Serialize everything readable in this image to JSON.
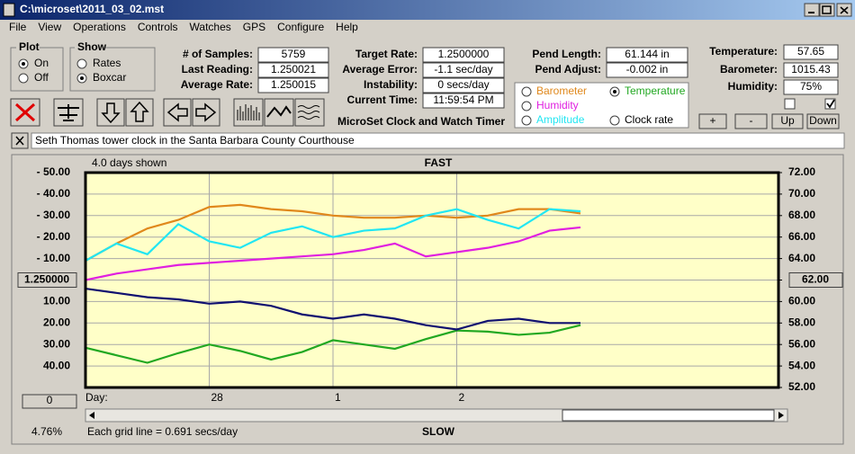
{
  "window": {
    "title": "C:\\microset\\2011_03_02.mst"
  },
  "menu": [
    "File",
    "View",
    "Operations",
    "Controls",
    "Watches",
    "GPS",
    "Configure",
    "Help"
  ],
  "plot_group": {
    "title": "Plot",
    "options": [
      "On",
      "Off"
    ]
  },
  "show_group": {
    "title": "Show",
    "options": [
      "Rates",
      "Boxcar"
    ]
  },
  "fields": [
    {
      "label": "# of Samples:",
      "value": "5759"
    },
    {
      "label": "Last Reading:",
      "value": "1.250021"
    },
    {
      "label": "Average Rate:",
      "value": "1.250015"
    },
    {
      "label": "Target Rate:",
      "value": "1.2500000"
    },
    {
      "label": "Average Error:",
      "value": "-1.1 sec/day"
    },
    {
      "label": "Instability:",
      "value": "0 secs/day"
    },
    {
      "label": "Current Time:",
      "value": "11:59:54 PM"
    },
    {
      "label": "Pend Length:",
      "value": "61.144 in"
    },
    {
      "label": "Pend Adjust:",
      "value": "-0.002 in"
    },
    {
      "label": "Temperature:",
      "value": "57.65"
    },
    {
      "label": "Barometer:",
      "value": "1015.43"
    },
    {
      "label": "Humidity:",
      "value": "75%"
    }
  ],
  "app_title": "MicroSet Clock and Watch Timer",
  "buttons": [
    "+",
    "-",
    "Up",
    "Down"
  ],
  "description": "Seth Thomas tower clock in the Santa Barbara County Courthouse",
  "chart_data": {
    "type": "line",
    "top_label": "FAST",
    "bottom_label": "SLOW",
    "days_label": "4.0 days shown",
    "x_label": "Day:",
    "footer": "Each grid line = 0.691 secs/day",
    "status": "4.76%",
    "offset_button": "0",
    "x": [
      0,
      0.25,
      0.5,
      0.75,
      1,
      1.25,
      1.5,
      1.75,
      2,
      2.25,
      2.5,
      2.75,
      3,
      3.25,
      3.5,
      3.75,
      4
    ],
    "xlim": [
      0,
      5.6
    ],
    "xticks": [
      {
        "value": 1,
        "label": "28"
      },
      {
        "value": 2,
        "label": "1"
      },
      {
        "value": 3,
        "label": "2"
      }
    ],
    "ylim": [
      -50,
      50
    ],
    "yticks": [
      {
        "value": 50,
        "label": "- 50.00"
      },
      {
        "value": 40,
        "label": "- 40.00"
      },
      {
        "value": 30,
        "label": "- 30.00"
      },
      {
        "value": 20,
        "label": "- 20.00"
      },
      {
        "value": 10,
        "label": "- 10.00"
      },
      {
        "value": 0,
        "label": "1.250000"
      },
      {
        "value": -10,
        "label": "10.00"
      },
      {
        "value": -20,
        "label": "20.00"
      },
      {
        "value": -30,
        "label": "30.00"
      },
      {
        "value": -40,
        "label": "40.00"
      }
    ],
    "y2lim": [
      52,
      72
    ],
    "y2ticks": [
      {
        "value": 72,
        "label": "72.00"
      },
      {
        "value": 70,
        "label": "70.00"
      },
      {
        "value": 68,
        "label": "68.00"
      },
      {
        "value": 66,
        "label": "66.00"
      },
      {
        "value": 64,
        "label": "64.00"
      },
      {
        "value": 62,
        "label": "62.00"
      },
      {
        "value": 60,
        "label": "60.00"
      },
      {
        "value": 58,
        "label": "58.00"
      },
      {
        "value": 56,
        "label": "56.00"
      },
      {
        "value": 54,
        "label": "54.00"
      },
      {
        "value": 52,
        "label": "52.00"
      }
    ],
    "grid": true,
    "series": [
      {
        "name": "Barometer",
        "color": "#e0881c",
        "values": [
          9,
          17,
          24,
          28,
          34,
          35,
          33,
          32,
          30,
          29,
          29,
          30,
          29,
          30,
          33,
          33,
          31
        ]
      },
      {
        "name": "Temperature",
        "color": "#22a822",
        "axis": "y2",
        "values": [
          55.7,
          55.0,
          54.3,
          55.2,
          56.0,
          55.4,
          54.6,
          55.3,
          56.4,
          56.0,
          55.6,
          56.5,
          57.3,
          57.2,
          56.9,
          57.1,
          57.8
        ]
      },
      {
        "name": "Humidity",
        "color": "#e020e0",
        "values": [
          0,
          3,
          5,
          7,
          8,
          9,
          10,
          11,
          12,
          14,
          17,
          11,
          13,
          15,
          18,
          23,
          24.5
        ]
      },
      {
        "name": "Amplitude",
        "color": "#22e6f2",
        "values": [
          9,
          17,
          12,
          26,
          18,
          15,
          22,
          25,
          20,
          23,
          24,
          30,
          33,
          28,
          24,
          33,
          32
        ]
      },
      {
        "name": "Clock rate",
        "color": "#101070",
        "values": [
          -4,
          -6,
          -8,
          -9,
          -11,
          -10,
          -12,
          -16,
          -18,
          -16,
          -18,
          -21,
          -23,
          -19,
          -18,
          -20,
          -20
        ]
      }
    ]
  }
}
